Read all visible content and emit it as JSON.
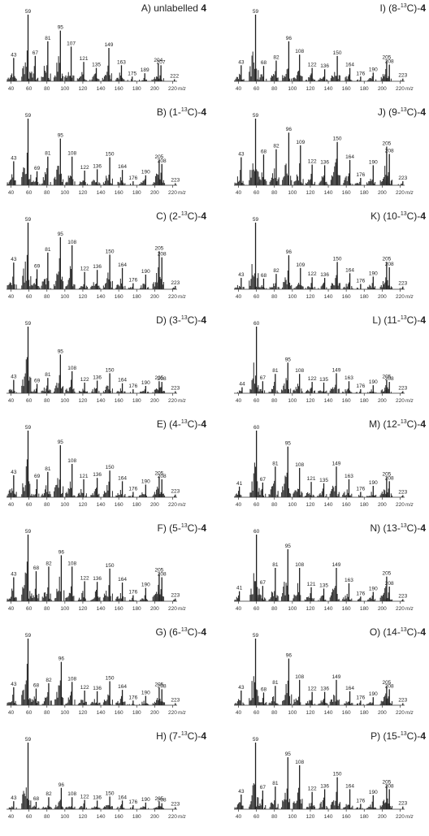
{
  "figure": {
    "x_ticks": [
      40,
      60,
      80,
      100,
      120,
      140,
      160,
      180,
      200,
      220
    ],
    "x_unit": "m/z",
    "bar_color": "#3a3a3a"
  },
  "chart_data": [
    {
      "type": "bar",
      "title": "A) unlabelled 4",
      "title_prefix": "A) unlabelled",
      "title_bold": "4",
      "xlabel": "m/z",
      "xlim": [
        35,
        225
      ],
      "peaks": [
        [
          43,
          35
        ],
        [
          59,
          100
        ],
        [
          67,
          38
        ],
        [
          81,
          60
        ],
        [
          95,
          76
        ],
        [
          107,
          52
        ],
        [
          121,
          29
        ],
        [
          135,
          20
        ],
        [
          149,
          50
        ],
        [
          163,
          24
        ],
        [
          175,
          7
        ],
        [
          189,
          12
        ],
        [
          204,
          27
        ],
        [
          207,
          24
        ],
        [
          222,
          3
        ]
      ]
    },
    {
      "type": "bar",
      "title": "B) (1-13C)-4",
      "title_prefix": "B) (1-",
      "title_sup": "13",
      "title_suffix": "C)-",
      "title_bold": "4",
      "xlabel": "m/z",
      "xlim": [
        35,
        225
      ],
      "peaks": [
        [
          43,
          36
        ],
        [
          59,
          100
        ],
        [
          69,
          21
        ],
        [
          81,
          43
        ],
        [
          95,
          70
        ],
        [
          108,
          43
        ],
        [
          122,
          22
        ],
        [
          136,
          24
        ],
        [
          150,
          42
        ],
        [
          164,
          23
        ],
        [
          176,
          6
        ],
        [
          190,
          15
        ],
        [
          205,
          38
        ],
        [
          208,
          32
        ],
        [
          223,
          3
        ]
      ]
    },
    {
      "type": "bar",
      "title": "C) (2-13C)-4",
      "title_prefix": "C) (2-",
      "title_sup": "13",
      "title_suffix": "C)-",
      "title_bold": "4",
      "xlabel": "m/z",
      "xlim": [
        35,
        225
      ],
      "peaks": [
        [
          43,
          40
        ],
        [
          59,
          100
        ],
        [
          69,
          30
        ],
        [
          81,
          55
        ],
        [
          95,
          78
        ],
        [
          108,
          66
        ],
        [
          122,
          26
        ],
        [
          136,
          29
        ],
        [
          150,
          52
        ],
        [
          164,
          32
        ],
        [
          176,
          9
        ],
        [
          190,
          22
        ],
        [
          205,
          57
        ],
        [
          208,
          48
        ],
        [
          223,
          5
        ]
      ]
    },
    {
      "type": "bar",
      "title": "D) (3-13C)-4",
      "title_prefix": "D) (3-",
      "title_sup": "13",
      "title_suffix": "C)-",
      "title_bold": "4",
      "xlabel": "m/z",
      "xlim": [
        35,
        225
      ],
      "peaks": [
        [
          43,
          20
        ],
        [
          59,
          100
        ],
        [
          69,
          14
        ],
        [
          81,
          23
        ],
        [
          95,
          58
        ],
        [
          108,
          33
        ],
        [
          122,
          16
        ],
        [
          136,
          19
        ],
        [
          150,
          30
        ],
        [
          164,
          15
        ],
        [
          176,
          6
        ],
        [
          190,
          11
        ],
        [
          205,
          18
        ],
        [
          208,
          17
        ],
        [
          223,
          3
        ]
      ]
    },
    {
      "type": "bar",
      "title": "E) (4-13C)-4",
      "title_prefix": "E) (4-",
      "title_sup": "13",
      "title_suffix": "C)-",
      "title_bold": "4",
      "xlabel": "m/z",
      "xlim": [
        35,
        225
      ],
      "peaks": [
        [
          43,
          33
        ],
        [
          59,
          100
        ],
        [
          69,
          27
        ],
        [
          81,
          38
        ],
        [
          95,
          78
        ],
        [
          108,
          50
        ],
        [
          121,
          27
        ],
        [
          136,
          29
        ],
        [
          150,
          40
        ],
        [
          164,
          24
        ],
        [
          176,
          8
        ],
        [
          190,
          19
        ],
        [
          205,
          31
        ],
        [
          208,
          27
        ],
        [
          223,
          4
        ]
      ]
    },
    {
      "type": "bar",
      "title": "F) (5-13C)-4",
      "title_prefix": "F) (5-",
      "title_sup": "13",
      "title_suffix": "C)-",
      "title_bold": "4",
      "xlabel": "m/z",
      "xlim": [
        35,
        225
      ],
      "peaks": [
        [
          43,
          36
        ],
        [
          59,
          100
        ],
        [
          68,
          45
        ],
        [
          82,
          52
        ],
        [
          96,
          69
        ],
        [
          108,
          52
        ],
        [
          122,
          30
        ],
        [
          136,
          29
        ],
        [
          150,
          49
        ],
        [
          164,
          28
        ],
        [
          176,
          9
        ],
        [
          190,
          20
        ],
        [
          205,
          42
        ],
        [
          208,
          36
        ],
        [
          223,
          4
        ]
      ]
    },
    {
      "type": "bar",
      "title": "G) (6-13C)-4",
      "title_prefix": "G) (6-",
      "title_sup": "13",
      "title_suffix": "C)-",
      "title_bold": "4",
      "xlabel": "m/z",
      "xlim": [
        35,
        225
      ],
      "peaks": [
        [
          43,
          27
        ],
        [
          59,
          100
        ],
        [
          68,
          25
        ],
        [
          82,
          33
        ],
        [
          96,
          65
        ],
        [
          108,
          35
        ],
        [
          122,
          22
        ],
        [
          136,
          21
        ],
        [
          150,
          36
        ],
        [
          164,
          23
        ],
        [
          176,
          7
        ],
        [
          190,
          14
        ],
        [
          205,
          26
        ],
        [
          208,
          24
        ],
        [
          223,
          3
        ]
      ]
    },
    {
      "type": "bar",
      "title": "H) (7-13C)-4",
      "title_prefix": "H) (7-",
      "title_sup": "13",
      "title_suffix": "C)-",
      "title_bold": "4",
      "xlabel": "m/z",
      "xlim": [
        35,
        225
      ],
      "peaks": [
        [
          43,
          12
        ],
        [
          59,
          100
        ],
        [
          68,
          11
        ],
        [
          82,
          18
        ],
        [
          96,
          32
        ],
        [
          108,
          18
        ],
        [
          122,
          14
        ],
        [
          136,
          13
        ],
        [
          150,
          19
        ],
        [
          164,
          13
        ],
        [
          176,
          6
        ],
        [
          190,
          10
        ],
        [
          205,
          11
        ],
        [
          208,
          9
        ],
        [
          223,
          3
        ]
      ]
    },
    {
      "type": "bar",
      "title": "I) (8-13C)-4",
      "title_prefix": "I) (8-",
      "title_sup": "13",
      "title_suffix": "C)-",
      "title_bold": "4",
      "xlabel": "m/z",
      "xlim": [
        35,
        225
      ],
      "peaks": [
        [
          43,
          24
        ],
        [
          59,
          100
        ],
        [
          68,
          23
        ],
        [
          82,
          31
        ],
        [
          96,
          60
        ],
        [
          108,
          40
        ],
        [
          122,
          20
        ],
        [
          136,
          18
        ],
        [
          150,
          38
        ],
        [
          164,
          20
        ],
        [
          176,
          7
        ],
        [
          190,
          13
        ],
        [
          205,
          31
        ],
        [
          208,
          25
        ],
        [
          223,
          4
        ]
      ]
    },
    {
      "type": "bar",
      "title": "J) (9-13C)-4",
      "title_prefix": "J) (9-",
      "title_sup": "13",
      "title_suffix": "C)-",
      "title_bold": "4",
      "xlabel": "m/z",
      "xlim": [
        35,
        225
      ],
      "peaks": [
        [
          43,
          42
        ],
        [
          59,
          100
        ],
        [
          68,
          46
        ],
        [
          82,
          54
        ],
        [
          96,
          79
        ],
        [
          109,
          60
        ],
        [
          122,
          31
        ],
        [
          136,
          30
        ],
        [
          150,
          65
        ],
        [
          164,
          38
        ],
        [
          176,
          11
        ],
        [
          190,
          30
        ],
        [
          205,
          58
        ],
        [
          208,
          47
        ],
        [
          223,
          6
        ]
      ]
    },
    {
      "type": "bar",
      "title": "K) (10-13C)-4",
      "title_prefix": "K) (10-",
      "title_sup": "13",
      "title_suffix": "C)-",
      "title_bold": "4",
      "xlabel": "m/z",
      "xlim": [
        35,
        225
      ],
      "peaks": [
        [
          43,
          17
        ],
        [
          59,
          100
        ],
        [
          68,
          16
        ],
        [
          82,
          23
        ],
        [
          96,
          51
        ],
        [
          109,
          32
        ],
        [
          122,
          18
        ],
        [
          136,
          17
        ],
        [
          150,
          41
        ],
        [
          164,
          24
        ],
        [
          176,
          8
        ],
        [
          190,
          19
        ],
        [
          205,
          41
        ],
        [
          208,
          33
        ],
        [
          223,
          4
        ]
      ]
    },
    {
      "type": "bar",
      "title": "L) (11-13C)-4",
      "title_prefix": "L) (11-",
      "title_sup": "13",
      "title_suffix": "C)-",
      "title_bold": "4",
      "xlabel": "m/z",
      "xlim": [
        35,
        225
      ],
      "peaks": [
        [
          44,
          9
        ],
        [
          60,
          100
        ],
        [
          67,
          18
        ],
        [
          81,
          29
        ],
        [
          95,
          46
        ],
        [
          108,
          29
        ],
        [
          122,
          17
        ],
        [
          135,
          16
        ],
        [
          149,
          30
        ],
        [
          163,
          18
        ],
        [
          176,
          6
        ],
        [
          190,
          12
        ],
        [
          205,
          20
        ],
        [
          208,
          17
        ],
        [
          223,
          3
        ]
      ]
    },
    {
      "type": "bar",
      "title": "M) (12-13C)-4",
      "title_prefix": "M) (12-",
      "title_sup": "13",
      "title_suffix": "C)-",
      "title_bold": "4",
      "xlabel": "m/z",
      "xlim": [
        35,
        225
      ],
      "peaks": [
        [
          41,
          16
        ],
        [
          60,
          100
        ],
        [
          67,
          22
        ],
        [
          81,
          46
        ],
        [
          95,
          76
        ],
        [
          108,
          44
        ],
        [
          121,
          23
        ],
        [
          135,
          21
        ],
        [
          149,
          46
        ],
        [
          163,
          27
        ],
        [
          176,
          8
        ],
        [
          190,
          17
        ],
        [
          205,
          30
        ],
        [
          208,
          24
        ],
        [
          223,
          3
        ]
      ]
    },
    {
      "type": "bar",
      "title": "N) (13-13C)-4",
      "title_prefix": "N) (13-",
      "title_sup": "13",
      "title_suffix": "C)-",
      "title_bold": "4",
      "xlabel": "m/z",
      "xlim": [
        35,
        225
      ],
      "peaks": [
        [
          41,
          15
        ],
        [
          60,
          100
        ],
        [
          67,
          23
        ],
        [
          81,
          50
        ],
        [
          95,
          78
        ],
        [
          108,
          50
        ],
        [
          121,
          21
        ],
        [
          135,
          19
        ],
        [
          149,
          50
        ],
        [
          163,
          27
        ],
        [
          176,
          7
        ],
        [
          190,
          14
        ],
        [
          205,
          37
        ],
        [
          208,
          22
        ],
        [
          223,
          3
        ]
      ]
    },
    {
      "type": "bar",
      "title": "O) (14-13C)-4",
      "title_prefix": "O) (14-",
      "title_sup": "13",
      "title_suffix": "C)-",
      "title_bold": "4",
      "xlabel": "m/z",
      "xlim": [
        35,
        225
      ],
      "peaks": [
        [
          43,
          22
        ],
        [
          59,
          100
        ],
        [
          68,
          19
        ],
        [
          81,
          29
        ],
        [
          96,
          70
        ],
        [
          108,
          38
        ],
        [
          122,
          20
        ],
        [
          136,
          20
        ],
        [
          149,
          38
        ],
        [
          164,
          21
        ],
        [
          176,
          7
        ],
        [
          190,
          12
        ],
        [
          205,
          29
        ],
        [
          208,
          24
        ],
        [
          223,
          3
        ]
      ]
    },
    {
      "type": "bar",
      "title": "P) (15-13C)-4",
      "title_prefix": "P) (15-",
      "title_sup": "13",
      "title_suffix": "C)-",
      "title_bold": "4",
      "xlabel": "m/z",
      "xlim": [
        35,
        225
      ],
      "peaks": [
        [
          43,
          22
        ],
        [
          59,
          100
        ],
        [
          67,
          28
        ],
        [
          81,
          34
        ],
        [
          95,
          78
        ],
        [
          108,
          66
        ],
        [
          122,
          26
        ],
        [
          136,
          30
        ],
        [
          150,
          48
        ],
        [
          164,
          30
        ],
        [
          176,
          8
        ],
        [
          190,
          21
        ],
        [
          205,
          36
        ],
        [
          208,
          30
        ],
        [
          223,
          4
        ]
      ]
    }
  ]
}
